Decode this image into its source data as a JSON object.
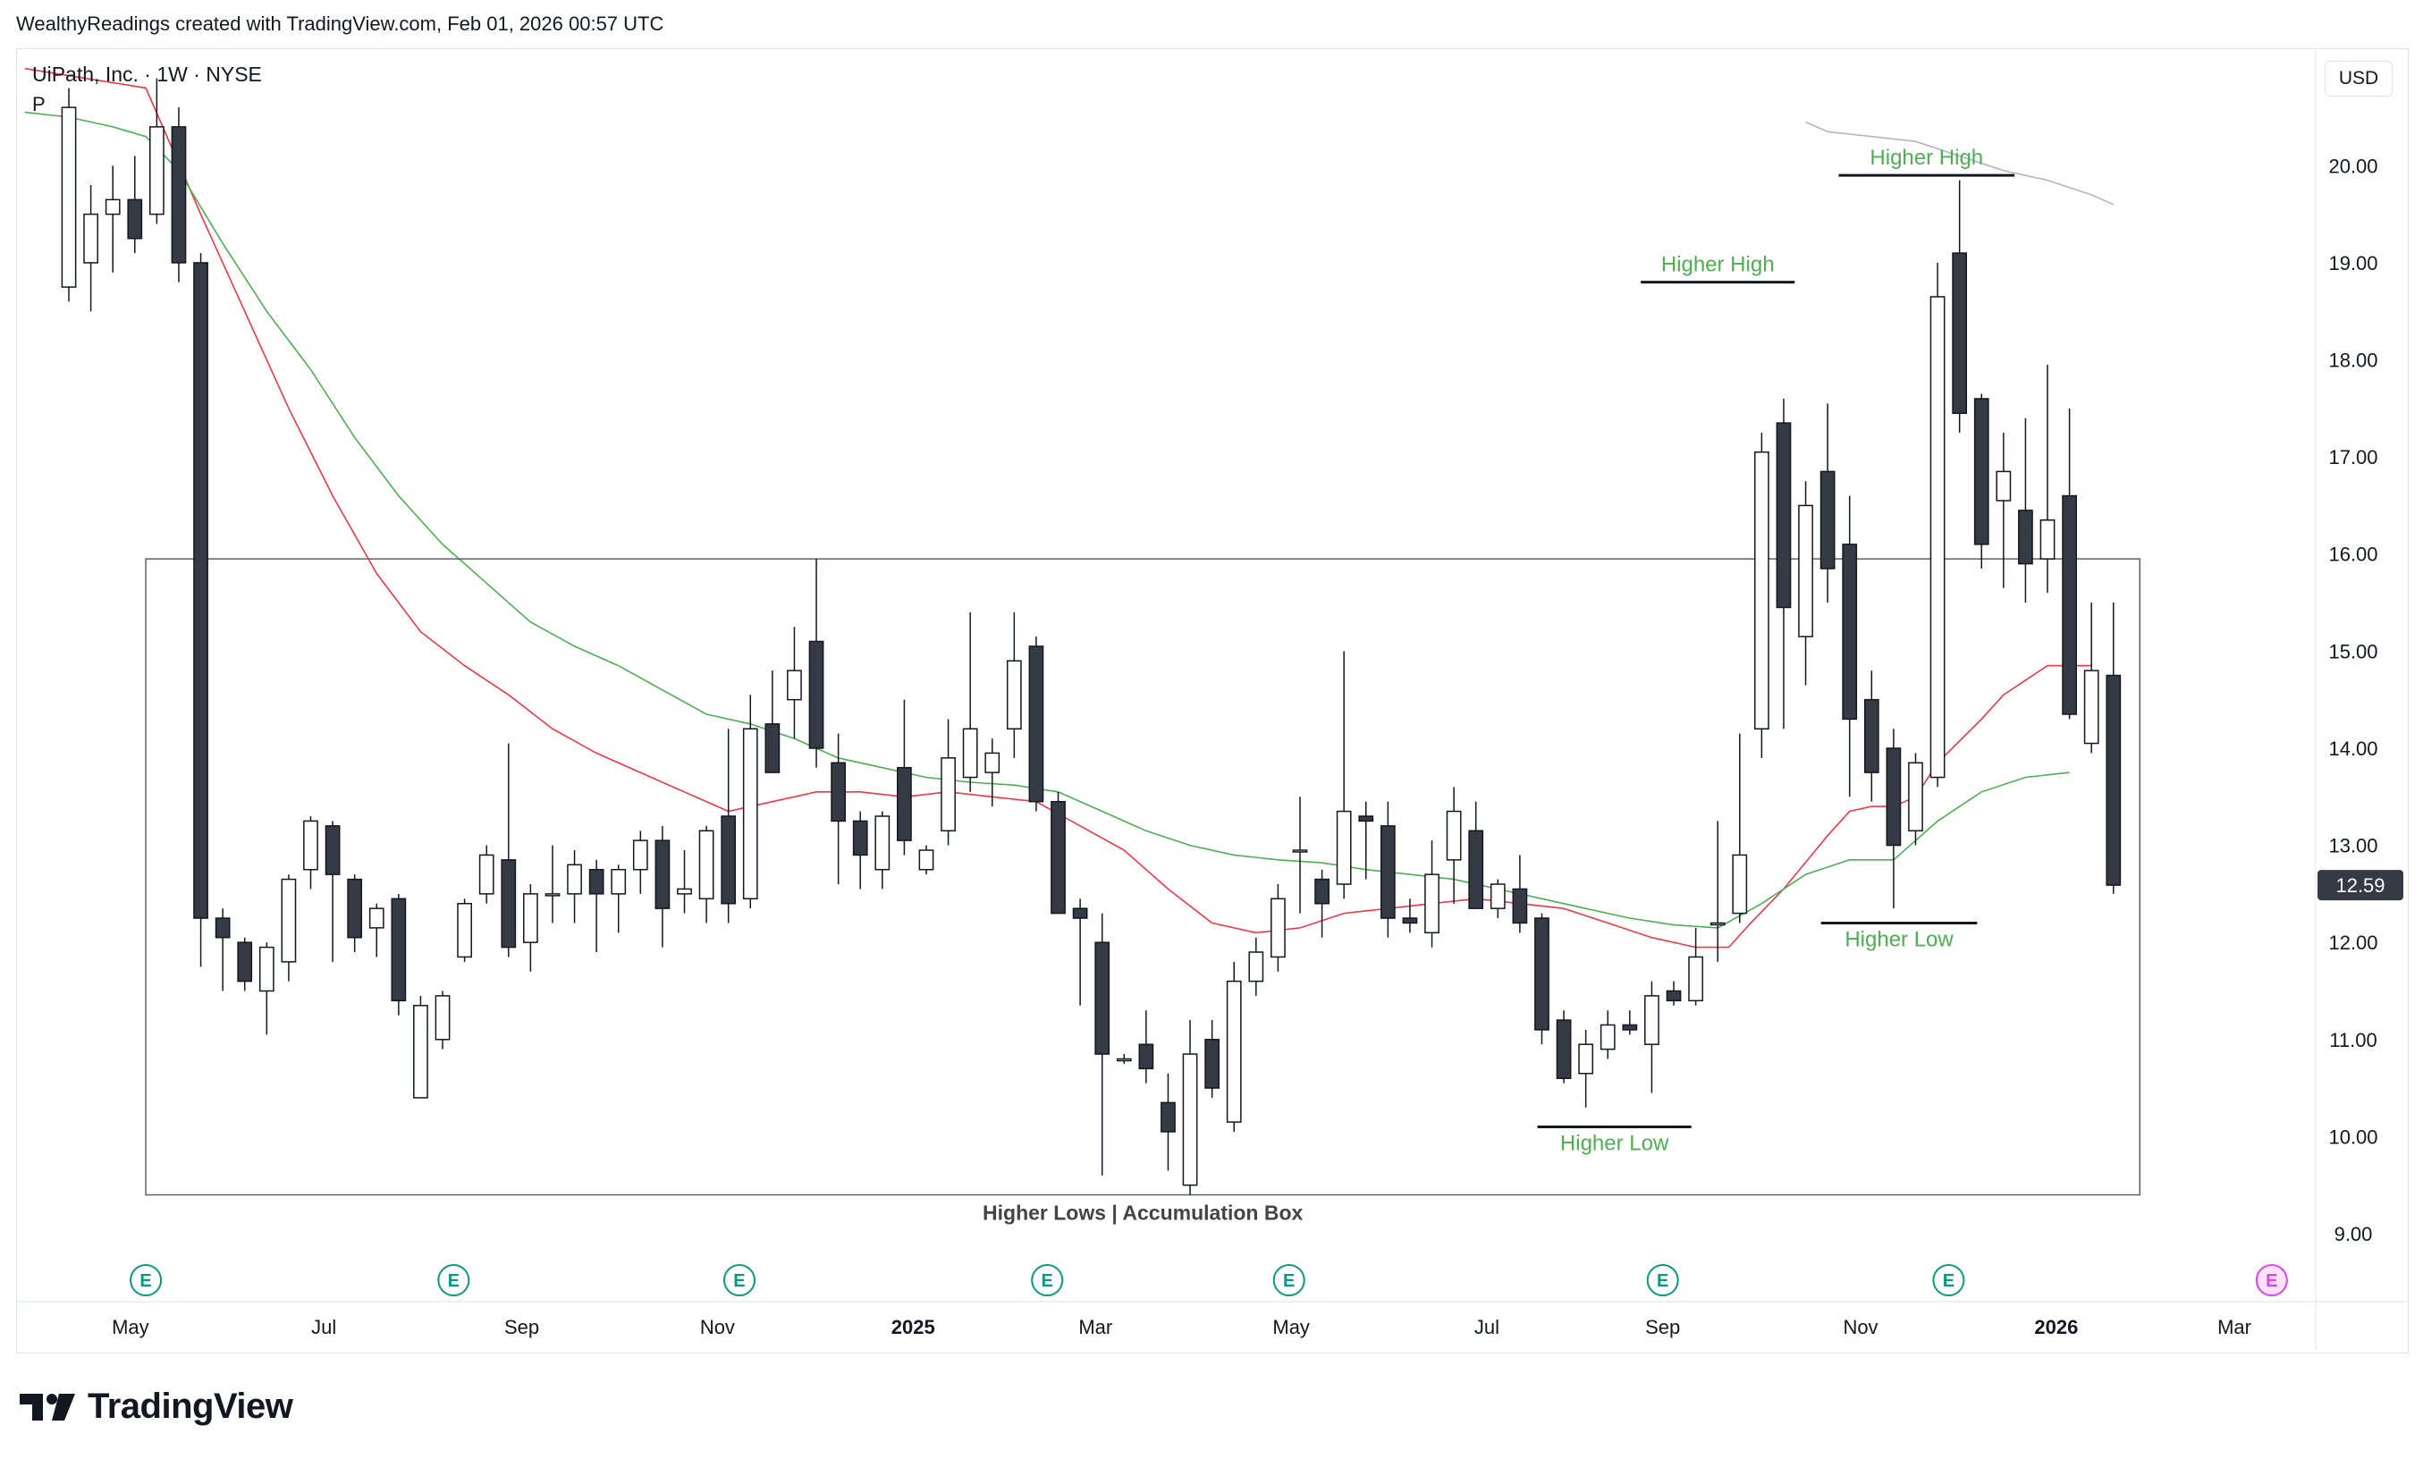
{
  "header": {
    "credit": "WealthyReadings created with TradingView.com, Feb 01, 2026 00:57 UTC"
  },
  "legend": {
    "symbol_line": "UiPath, Inc. · 1W · NYSE",
    "flag": "P"
  },
  "price_axis": {
    "currency_button": "USD",
    "last_price_label": "12.59"
  },
  "brand": {
    "logo_text": "TradingView"
  },
  "colors": {
    "up_body": "#ffffff",
    "down_body": "#363a45",
    "candle_outline": "#131722",
    "ma_fast": "#f23645",
    "ma_slow": "#4caf50",
    "ma_long": "#b2b5be",
    "annotation_green": "#4caf50",
    "last_price_bg": "#363a45",
    "earnings": "#089981"
  },
  "icons": {
    "earnings": "earnings-e-icon",
    "logo": "tradingview-logo-icon"
  },
  "chart_data": {
    "type": "candlestick",
    "ylim": [
      8.3,
      21.2
    ],
    "x_range": [
      -2.4,
      102.2
    ],
    "y_ticks": [
      "9.00",
      "10.00",
      "11.00",
      "12.00",
      "13.00",
      "14.00",
      "15.00",
      "16.00",
      "17.00",
      "18.00",
      "19.00",
      "20.00"
    ],
    "x_ticks": [
      {
        "label": "May",
        "w": 2.8,
        "bold": false
      },
      {
        "label": "Jul",
        "w": 11.6,
        "bold": false
      },
      {
        "label": "Sep",
        "w": 20.6,
        "bold": false
      },
      {
        "label": "Nov",
        "w": 29.5,
        "bold": false
      },
      {
        "label": "2025",
        "w": 38.4,
        "bold": true
      },
      {
        "label": "Mar",
        "w": 46.7,
        "bold": false
      },
      {
        "label": "May",
        "w": 55.6,
        "bold": false
      },
      {
        "label": "Jul",
        "w": 64.5,
        "bold": false
      },
      {
        "label": "Sep",
        "w": 72.5,
        "bold": false
      },
      {
        "label": "Nov",
        "w": 81.5,
        "bold": false
      },
      {
        "label": "2026",
        "w": 90.4,
        "bold": true
      },
      {
        "label": "Mar",
        "w": 98.5,
        "bold": false
      }
    ],
    "candles": [
      {
        "o": 18.75,
        "h": 20.8,
        "l": 18.6,
        "c": 20.6
      },
      {
        "o": 19.0,
        "h": 19.8,
        "l": 18.5,
        "c": 19.5
      },
      {
        "o": 19.5,
        "h": 20.0,
        "l": 18.9,
        "c": 19.65
      },
      {
        "o": 19.65,
        "h": 20.1,
        "l": 19.1,
        "c": 19.25
      },
      {
        "o": 19.5,
        "h": 20.9,
        "l": 19.4,
        "c": 20.4
      },
      {
        "o": 20.4,
        "h": 20.6,
        "l": 18.8,
        "c": 19.0
      },
      {
        "o": 19.0,
        "h": 19.1,
        "l": 11.75,
        "c": 12.25
      },
      {
        "o": 12.25,
        "h": 12.35,
        "l": 11.5,
        "c": 12.05
      },
      {
        "o": 12.0,
        "h": 12.05,
        "l": 11.5,
        "c": 11.6
      },
      {
        "o": 11.5,
        "h": 12.0,
        "l": 11.05,
        "c": 11.95
      },
      {
        "o": 11.8,
        "h": 12.7,
        "l": 11.6,
        "c": 12.65
      },
      {
        "o": 12.75,
        "h": 13.3,
        "l": 12.55,
        "c": 13.25
      },
      {
        "o": 13.2,
        "h": 13.25,
        "l": 11.8,
        "c": 12.7
      },
      {
        "o": 12.65,
        "h": 12.7,
        "l": 11.9,
        "c": 12.05
      },
      {
        "o": 12.15,
        "h": 12.4,
        "l": 11.85,
        "c": 12.35
      },
      {
        "o": 12.45,
        "h": 12.5,
        "l": 11.25,
        "c": 11.4
      },
      {
        "o": 10.4,
        "h": 11.45,
        "l": 10.4,
        "c": 11.35
      },
      {
        "o": 11.0,
        "h": 11.5,
        "l": 10.9,
        "c": 11.45
      },
      {
        "o": 11.85,
        "h": 12.45,
        "l": 11.8,
        "c": 12.4
      },
      {
        "o": 12.5,
        "h": 13.0,
        "l": 12.4,
        "c": 12.9
      },
      {
        "o": 12.85,
        "h": 14.05,
        "l": 11.85,
        "c": 11.95
      },
      {
        "o": 12.0,
        "h": 12.6,
        "l": 11.7,
        "c": 12.5
      },
      {
        "o": 12.5,
        "h": 13.0,
        "l": 12.2,
        "c": 12.5
      },
      {
        "o": 12.5,
        "h": 12.95,
        "l": 12.2,
        "c": 12.8
      },
      {
        "o": 12.75,
        "h": 12.85,
        "l": 11.9,
        "c": 12.5
      },
      {
        "o": 12.5,
        "h": 12.8,
        "l": 12.1,
        "c": 12.75
      },
      {
        "o": 12.75,
        "h": 13.15,
        "l": 12.5,
        "c": 13.05
      },
      {
        "o": 13.05,
        "h": 13.2,
        "l": 11.95,
        "c": 12.35
      },
      {
        "o": 12.5,
        "h": 12.95,
        "l": 12.3,
        "c": 12.55
      },
      {
        "o": 12.45,
        "h": 13.2,
        "l": 12.2,
        "c": 13.15
      },
      {
        "o": 13.3,
        "h": 14.2,
        "l": 12.2,
        "c": 12.4
      },
      {
        "o": 12.45,
        "h": 14.55,
        "l": 12.35,
        "c": 14.2
      },
      {
        "o": 14.25,
        "h": 14.8,
        "l": 13.8,
        "c": 13.75
      },
      {
        "o": 14.5,
        "h": 15.25,
        "l": 14.1,
        "c": 14.8
      },
      {
        "o": 15.1,
        "h": 15.95,
        "l": 13.8,
        "c": 14.0
      },
      {
        "o": 13.85,
        "h": 14.15,
        "l": 12.6,
        "c": 13.25
      },
      {
        "o": 13.25,
        "h": 13.35,
        "l": 12.55,
        "c": 12.9
      },
      {
        "o": 12.75,
        "h": 13.35,
        "l": 12.55,
        "c": 13.3
      },
      {
        "o": 13.8,
        "h": 14.5,
        "l": 12.9,
        "c": 13.05
      },
      {
        "o": 12.75,
        "h": 13.0,
        "l": 12.7,
        "c": 12.95
      },
      {
        "o": 13.15,
        "h": 14.3,
        "l": 13.0,
        "c": 13.9
      },
      {
        "o": 13.7,
        "h": 15.4,
        "l": 13.55,
        "c": 14.2
      },
      {
        "o": 13.75,
        "h": 14.1,
        "l": 13.4,
        "c": 13.95
      },
      {
        "o": 14.2,
        "h": 15.4,
        "l": 13.9,
        "c": 14.9
      },
      {
        "o": 15.05,
        "h": 15.15,
        "l": 13.35,
        "c": 13.45
      },
      {
        "o": 13.45,
        "h": 13.55,
        "l": 12.3,
        "c": 12.3
      },
      {
        "o": 12.35,
        "h": 12.45,
        "l": 11.35,
        "c": 12.25
      },
      {
        "o": 12.0,
        "h": 12.3,
        "l": 9.6,
        "c": 10.85
      },
      {
        "o": 10.8,
        "h": 10.85,
        "l": 10.75,
        "c": 10.8
      },
      {
        "o": 10.95,
        "h": 11.3,
        "l": 10.55,
        "c": 10.7
      },
      {
        "o": 10.35,
        "h": 10.65,
        "l": 9.65,
        "c": 10.05
      },
      {
        "o": 9.5,
        "h": 11.2,
        "l": 9.4,
        "c": 10.85
      },
      {
        "o": 11.0,
        "h": 11.2,
        "l": 10.4,
        "c": 10.5
      },
      {
        "o": 10.15,
        "h": 11.8,
        "l": 10.05,
        "c": 11.6
      },
      {
        "o": 11.6,
        "h": 12.05,
        "l": 11.45,
        "c": 11.9
      },
      {
        "o": 11.85,
        "h": 12.6,
        "l": 11.7,
        "c": 12.45
      },
      {
        "o": 12.95,
        "h": 13.5,
        "l": 12.3,
        "c": 12.95
      },
      {
        "o": 12.65,
        "h": 12.75,
        "l": 12.05,
        "c": 12.4
      },
      {
        "o": 12.6,
        "h": 15.0,
        "l": 12.45,
        "c": 13.35
      },
      {
        "o": 13.3,
        "h": 13.45,
        "l": 12.65,
        "c": 13.25
      },
      {
        "o": 13.2,
        "h": 13.45,
        "l": 12.05,
        "c": 12.25
      },
      {
        "o": 12.25,
        "h": 12.45,
        "l": 12.1,
        "c": 12.2
      },
      {
        "o": 12.1,
        "h": 13.05,
        "l": 11.95,
        "c": 12.7
      },
      {
        "o": 12.85,
        "h": 13.6,
        "l": 12.4,
        "c": 13.35
      },
      {
        "o": 13.15,
        "h": 13.45,
        "l": 12.35,
        "c": 12.35
      },
      {
        "o": 12.35,
        "h": 12.65,
        "l": 12.25,
        "c": 12.6
      },
      {
        "o": 12.55,
        "h": 12.9,
        "l": 12.1,
        "c": 12.2
      },
      {
        "o": 12.25,
        "h": 12.3,
        "l": 10.95,
        "c": 11.1
      },
      {
        "o": 11.2,
        "h": 11.3,
        "l": 10.55,
        "c": 10.6
      },
      {
        "o": 10.65,
        "h": 11.1,
        "l": 10.3,
        "c": 10.95
      },
      {
        "o": 10.9,
        "h": 11.3,
        "l": 10.8,
        "c": 11.15
      },
      {
        "o": 11.15,
        "h": 11.3,
        "l": 11.05,
        "c": 11.1
      },
      {
        "o": 10.95,
        "h": 11.6,
        "l": 10.45,
        "c": 11.45
      },
      {
        "o": 11.5,
        "h": 11.6,
        "l": 11.35,
        "c": 11.4
      },
      {
        "o": 11.4,
        "h": 12.15,
        "l": 11.35,
        "c": 11.85
      },
      {
        "o": 12.2,
        "h": 13.25,
        "l": 11.8,
        "c": 12.2
      },
      {
        "o": 12.3,
        "h": 14.15,
        "l": 12.2,
        "c": 12.9
      },
      {
        "o": 14.2,
        "h": 17.25,
        "l": 13.9,
        "c": 17.05
      },
      {
        "o": 17.35,
        "h": 17.6,
        "l": 14.2,
        "c": 15.45
      },
      {
        "o": 15.15,
        "h": 16.75,
        "l": 14.65,
        "c": 16.5
      },
      {
        "o": 16.85,
        "h": 17.55,
        "l": 15.5,
        "c": 15.85
      },
      {
        "o": 16.1,
        "h": 16.6,
        "l": 13.5,
        "c": 14.3
      },
      {
        "o": 14.5,
        "h": 14.8,
        "l": 13.45,
        "c": 13.75
      },
      {
        "o": 14.0,
        "h": 14.2,
        "l": 12.35,
        "c": 13.0
      },
      {
        "o": 13.15,
        "h": 13.95,
        "l": 13.0,
        "c": 13.85
      },
      {
        "o": 13.7,
        "h": 19.0,
        "l": 13.6,
        "c": 18.65
      },
      {
        "o": 19.1,
        "h": 19.85,
        "l": 17.25,
        "c": 17.45
      },
      {
        "o": 17.6,
        "h": 17.65,
        "l": 15.85,
        "c": 16.1
      },
      {
        "o": 16.55,
        "h": 17.25,
        "l": 15.65,
        "c": 16.85
      },
      {
        "o": 16.45,
        "h": 17.4,
        "l": 15.5,
        "c": 15.9
      },
      {
        "o": 15.95,
        "h": 17.95,
        "l": 15.6,
        "c": 16.35
      },
      {
        "o": 16.6,
        "h": 17.5,
        "l": 14.3,
        "c": 14.35
      },
      {
        "o": 14.05,
        "h": 15.5,
        "l": 13.95,
        "c": 14.8
      },
      {
        "o": 14.75,
        "h": 15.5,
        "l": 12.5,
        "c": 12.59
      }
    ],
    "moving_averages": [
      {
        "color": "#f23645",
        "points": [
          [
            -2,
            21.0
          ],
          [
            3.5,
            20.8
          ],
          [
            6,
            19.5
          ],
          [
            8,
            18.5
          ],
          [
            10,
            17.5
          ],
          [
            12,
            16.6
          ],
          [
            14,
            15.8
          ],
          [
            16,
            15.2
          ],
          [
            18,
            14.85
          ],
          [
            20,
            14.55
          ],
          [
            22,
            14.2
          ],
          [
            24,
            13.95
          ],
          [
            26,
            13.75
          ],
          [
            28,
            13.55
          ],
          [
            30,
            13.35
          ],
          [
            32,
            13.45
          ],
          [
            34,
            13.55
          ],
          [
            36,
            13.55
          ],
          [
            38,
            13.5
          ],
          [
            40,
            13.55
          ],
          [
            42,
            13.5
          ],
          [
            44,
            13.45
          ],
          [
            46,
            13.2
          ],
          [
            48,
            12.95
          ],
          [
            50,
            12.55
          ],
          [
            52,
            12.2
          ],
          [
            54,
            12.1
          ],
          [
            56,
            12.15
          ],
          [
            58,
            12.3
          ],
          [
            60,
            12.35
          ],
          [
            62,
            12.4
          ],
          [
            64,
            12.45
          ],
          [
            66,
            12.4
          ],
          [
            68,
            12.35
          ],
          [
            70,
            12.2
          ],
          [
            72,
            12.05
          ],
          [
            74,
            11.95
          ],
          [
            75.5,
            11.95
          ],
          [
            76.5,
            12.2
          ],
          [
            78,
            12.55
          ],
          [
            80,
            13.1
          ],
          [
            81,
            13.35
          ],
          [
            82,
            13.4
          ],
          [
            83,
            13.4
          ],
          [
            84,
            13.5
          ],
          [
            85,
            13.85
          ],
          [
            87,
            14.3
          ],
          [
            88,
            14.55
          ],
          [
            89,
            14.7
          ],
          [
            90,
            14.85
          ],
          [
            92,
            14.85
          ]
        ]
      },
      {
        "color": "#4caf50",
        "points": [
          [
            -2,
            20.55
          ],
          [
            0,
            20.5
          ],
          [
            2,
            20.4
          ],
          [
            3.5,
            20.3
          ],
          [
            5,
            19.95
          ],
          [
            7,
            19.2
          ],
          [
            9,
            18.5
          ],
          [
            11,
            17.9
          ],
          [
            13,
            17.2
          ],
          [
            15,
            16.6
          ],
          [
            17,
            16.1
          ],
          [
            19,
            15.7
          ],
          [
            21,
            15.3
          ],
          [
            23,
            15.05
          ],
          [
            25,
            14.85
          ],
          [
            27,
            14.6
          ],
          [
            29,
            14.35
          ],
          [
            31,
            14.25
          ],
          [
            33,
            14.1
          ],
          [
            35,
            13.9
          ],
          [
            37,
            13.8
          ],
          [
            39,
            13.7
          ],
          [
            41,
            13.65
          ],
          [
            43,
            13.62
          ],
          [
            45,
            13.55
          ],
          [
            47,
            13.35
          ],
          [
            49,
            13.15
          ],
          [
            51,
            13.0
          ],
          [
            53,
            12.9
          ],
          [
            55,
            12.85
          ],
          [
            57,
            12.82
          ],
          [
            59,
            12.75
          ],
          [
            61,
            12.7
          ],
          [
            63,
            12.65
          ],
          [
            65,
            12.55
          ],
          [
            67,
            12.45
          ],
          [
            69,
            12.35
          ],
          [
            71,
            12.25
          ],
          [
            73,
            12.18
          ],
          [
            75,
            12.15
          ],
          [
            77,
            12.4
          ],
          [
            79,
            12.7
          ],
          [
            81,
            12.85
          ],
          [
            83,
            12.85
          ],
          [
            85,
            13.25
          ],
          [
            87,
            13.55
          ],
          [
            89,
            13.7
          ],
          [
            91,
            13.75
          ]
        ]
      },
      {
        "color": "#b2b5be",
        "points": [
          [
            79,
            20.45
          ],
          [
            80,
            20.35
          ],
          [
            82,
            20.3
          ],
          [
            84,
            20.25
          ],
          [
            86,
            20.1
          ],
          [
            88,
            19.95
          ],
          [
            90,
            19.85
          ],
          [
            92,
            19.7
          ],
          [
            93,
            19.6
          ]
        ]
      }
    ],
    "accumulation_box": {
      "w1": 3.5,
      "w2": 94.2,
      "y_top": 15.95,
      "y_bottom": 9.4,
      "label": "Higher Lows | Accumulation Box"
    },
    "annotations": [
      {
        "label": "Higher High",
        "w1": 71.5,
        "w2": 78.5,
        "y": 18.8,
        "label_above": true
      },
      {
        "label": "Higher High",
        "w1": 80.5,
        "w2": 88.5,
        "y": 19.9,
        "label_above": true
      },
      {
        "label": "Higher Low",
        "w1": 66.8,
        "w2": 73.8,
        "y": 10.1,
        "label_above": false
      },
      {
        "label": "Higher Low",
        "w1": 79.7,
        "w2": 86.8,
        "y": 12.2,
        "label_above": false
      }
    ],
    "earnings_markers": [
      3.5,
      17.5,
      30.5,
      44.5,
      55.5,
      72.5,
      85.5,
      100.2
    ],
    "last_price": 12.59
  }
}
